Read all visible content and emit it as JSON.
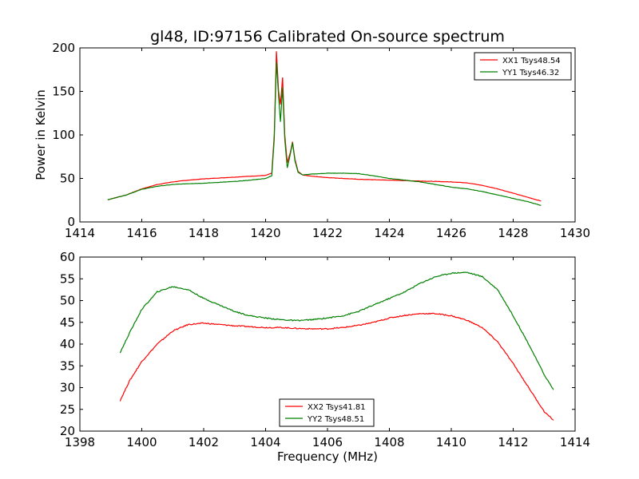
{
  "figure": {
    "title": "gl48, ID:97156 Calibrated On-source spectrum"
  },
  "chart_data": [
    {
      "type": "line",
      "title": "gl48, ID:97156 Calibrated On-source spectrum",
      "xlabel": "",
      "ylabel": "Power in Kelvin",
      "xlim": [
        1414,
        1430
      ],
      "ylim": [
        0,
        200
      ],
      "xticks": [
        1414,
        1416,
        1418,
        1420,
        1422,
        1424,
        1426,
        1428,
        1430
      ],
      "yticks": [
        0,
        50,
        100,
        150,
        200
      ],
      "grid": false,
      "legend": "top-right",
      "series": [
        {
          "name": "XX1 Tsys48.54",
          "color": "#ff0000",
          "x": [
            1414.9,
            1415.5,
            1416,
            1416.5,
            1417,
            1417.5,
            1418,
            1418.5,
            1419,
            1419.5,
            1420,
            1420.2,
            1420.28,
            1420.35,
            1420.42,
            1420.48,
            1420.55,
            1420.62,
            1420.7,
            1420.8,
            1420.87,
            1420.95,
            1421.05,
            1421.2,
            1421.5,
            1422,
            1422.5,
            1423,
            1423.5,
            1424,
            1424.5,
            1425,
            1425.5,
            1426,
            1426.5,
            1427,
            1427.5,
            1428,
            1428.5,
            1428.9
          ],
          "values": [
            25.5,
            31,
            38,
            43,
            46,
            48,
            49.5,
            50.5,
            51.5,
            52.5,
            53.5,
            56,
            100,
            196,
            150,
            135,
            166,
            100,
            68,
            80,
            92,
            72,
            58,
            54,
            52.5,
            51,
            50,
            49,
            48.5,
            48,
            47.5,
            47,
            46.5,
            46,
            45,
            42,
            38,
            33,
            28,
            24
          ]
        },
        {
          "name": "YY1 Tsys46.32",
          "color": "#008000",
          "x": [
            1414.9,
            1415.5,
            1416,
            1416.5,
            1417,
            1417.5,
            1418,
            1418.5,
            1419,
            1419.5,
            1420,
            1420.2,
            1420.28,
            1420.35,
            1420.42,
            1420.48,
            1420.55,
            1420.62,
            1420.7,
            1420.8,
            1420.87,
            1420.95,
            1421.05,
            1421.2,
            1421.5,
            1422,
            1422.5,
            1423,
            1423.5,
            1424,
            1424.5,
            1425,
            1425.5,
            1426,
            1426.5,
            1427,
            1427.5,
            1428,
            1428.5,
            1428.9
          ],
          "values": [
            25.5,
            31,
            37.5,
            41,
            43,
            44,
            44.5,
            45.5,
            46.5,
            48,
            50,
            53,
            95,
            184,
            145,
            115,
            155,
            95,
            62,
            78,
            91,
            70,
            57,
            54,
            55,
            56,
            56,
            55.5,
            53,
            50,
            48,
            46,
            43,
            40,
            38,
            35,
            31,
            27,
            23,
            19
          ]
        }
      ]
    },
    {
      "type": "line",
      "title": "",
      "xlabel": "Frequency (MHz)",
      "ylabel": "",
      "xlim": [
        1398,
        1414
      ],
      "ylim": [
        20,
        60
      ],
      "xticks": [
        1398,
        1400,
        1402,
        1404,
        1406,
        1408,
        1410,
        1412,
        1414
      ],
      "yticks": [
        20,
        25,
        30,
        35,
        40,
        45,
        50,
        55,
        60
      ],
      "grid": false,
      "legend": "bottom-center",
      "series": [
        {
          "name": "XX2 Tsys41.81",
          "color": "#ff0000",
          "x": [
            1399.3,
            1399.6,
            1400,
            1400.5,
            1401,
            1401.5,
            1402,
            1402.5,
            1403,
            1403.5,
            1404,
            1404.5,
            1405,
            1405.5,
            1406,
            1406.5,
            1407,
            1407.5,
            1408,
            1408.5,
            1409,
            1409.5,
            1410,
            1410.5,
            1411,
            1411.5,
            1412,
            1412.5,
            1413,
            1413.3
          ],
          "values": [
            27,
            31.5,
            36,
            40,
            43,
            44.5,
            44.8,
            44.5,
            44.2,
            44,
            43.8,
            43.8,
            43.6,
            43.5,
            43.5,
            43.8,
            44.3,
            45,
            46,
            46.6,
            47,
            47,
            46.5,
            45.5,
            43.8,
            40.5,
            35.5,
            30,
            24.5,
            22.5
          ]
        },
        {
          "name": "YY2 Tsys48.51",
          "color": "#008000",
          "x": [
            1399.3,
            1399.6,
            1400,
            1400.5,
            1401,
            1401.5,
            1402,
            1402.5,
            1403,
            1403.5,
            1404,
            1404.5,
            1405,
            1405.5,
            1406,
            1406.5,
            1407,
            1407.5,
            1408,
            1408.5,
            1409,
            1409.5,
            1410,
            1410.5,
            1411,
            1411.5,
            1412,
            1412.5,
            1413,
            1413.3
          ],
          "values": [
            38,
            42.5,
            48,
            52,
            53.2,
            52.5,
            50.5,
            49,
            47.5,
            46.5,
            46,
            45.6,
            45.4,
            45.6,
            46,
            46.5,
            47.5,
            49,
            50.5,
            52,
            54,
            55.5,
            56.3,
            56.5,
            55.5,
            52.5,
            46.5,
            40,
            33,
            29.5
          ]
        }
      ]
    }
  ]
}
